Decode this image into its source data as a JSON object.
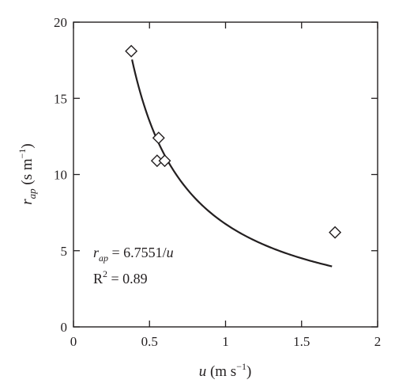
{
  "chart_data": {
    "type": "scatter",
    "xlim": [
      0,
      2
    ],
    "ylim": [
      0,
      20
    ],
    "xticks": [
      0,
      0.5,
      1,
      1.5,
      2
    ],
    "xtick_labels": [
      "0",
      "0.5",
      "1",
      "1.5",
      "2"
    ],
    "yticks": [
      0,
      5,
      10,
      15,
      20
    ],
    "ytick_labels": [
      "0",
      "5",
      "10",
      "15",
      "20"
    ],
    "xlabel": {
      "var": "u",
      "unit_pre": " (m s",
      "unit_sup": "−1",
      "unit_post": ")"
    },
    "ylabel": {
      "var": "r",
      "sub": "ap",
      "unit_pre": " (s m",
      "unit_sup": "−1",
      "unit_post": ")"
    },
    "grid": false,
    "marker": "diamond-open",
    "series": [
      {
        "values": [
          {
            "x": 0.38,
            "y": 18.1
          },
          {
            "x": 0.56,
            "y": 12.4
          },
          {
            "x": 0.55,
            "y": 10.9
          },
          {
            "x": 0.6,
            "y": 10.9
          },
          {
            "x": 1.72,
            "y": 6.2
          }
        ]
      }
    ],
    "fit": {
      "coefficient": 6.7551,
      "x_range": [
        0.385,
        1.7
      ],
      "equation": {
        "var": "r",
        "sub": "ap",
        "rest_pre": " = 6.7551/",
        "var2": "u"
      },
      "r2": {
        "prefix": "R",
        "sup": "2",
        "rest": " = 0.89"
      }
    },
    "colors": {
      "axis": "#231f20",
      "marker": "#231f20",
      "curve": "#231f20"
    }
  }
}
